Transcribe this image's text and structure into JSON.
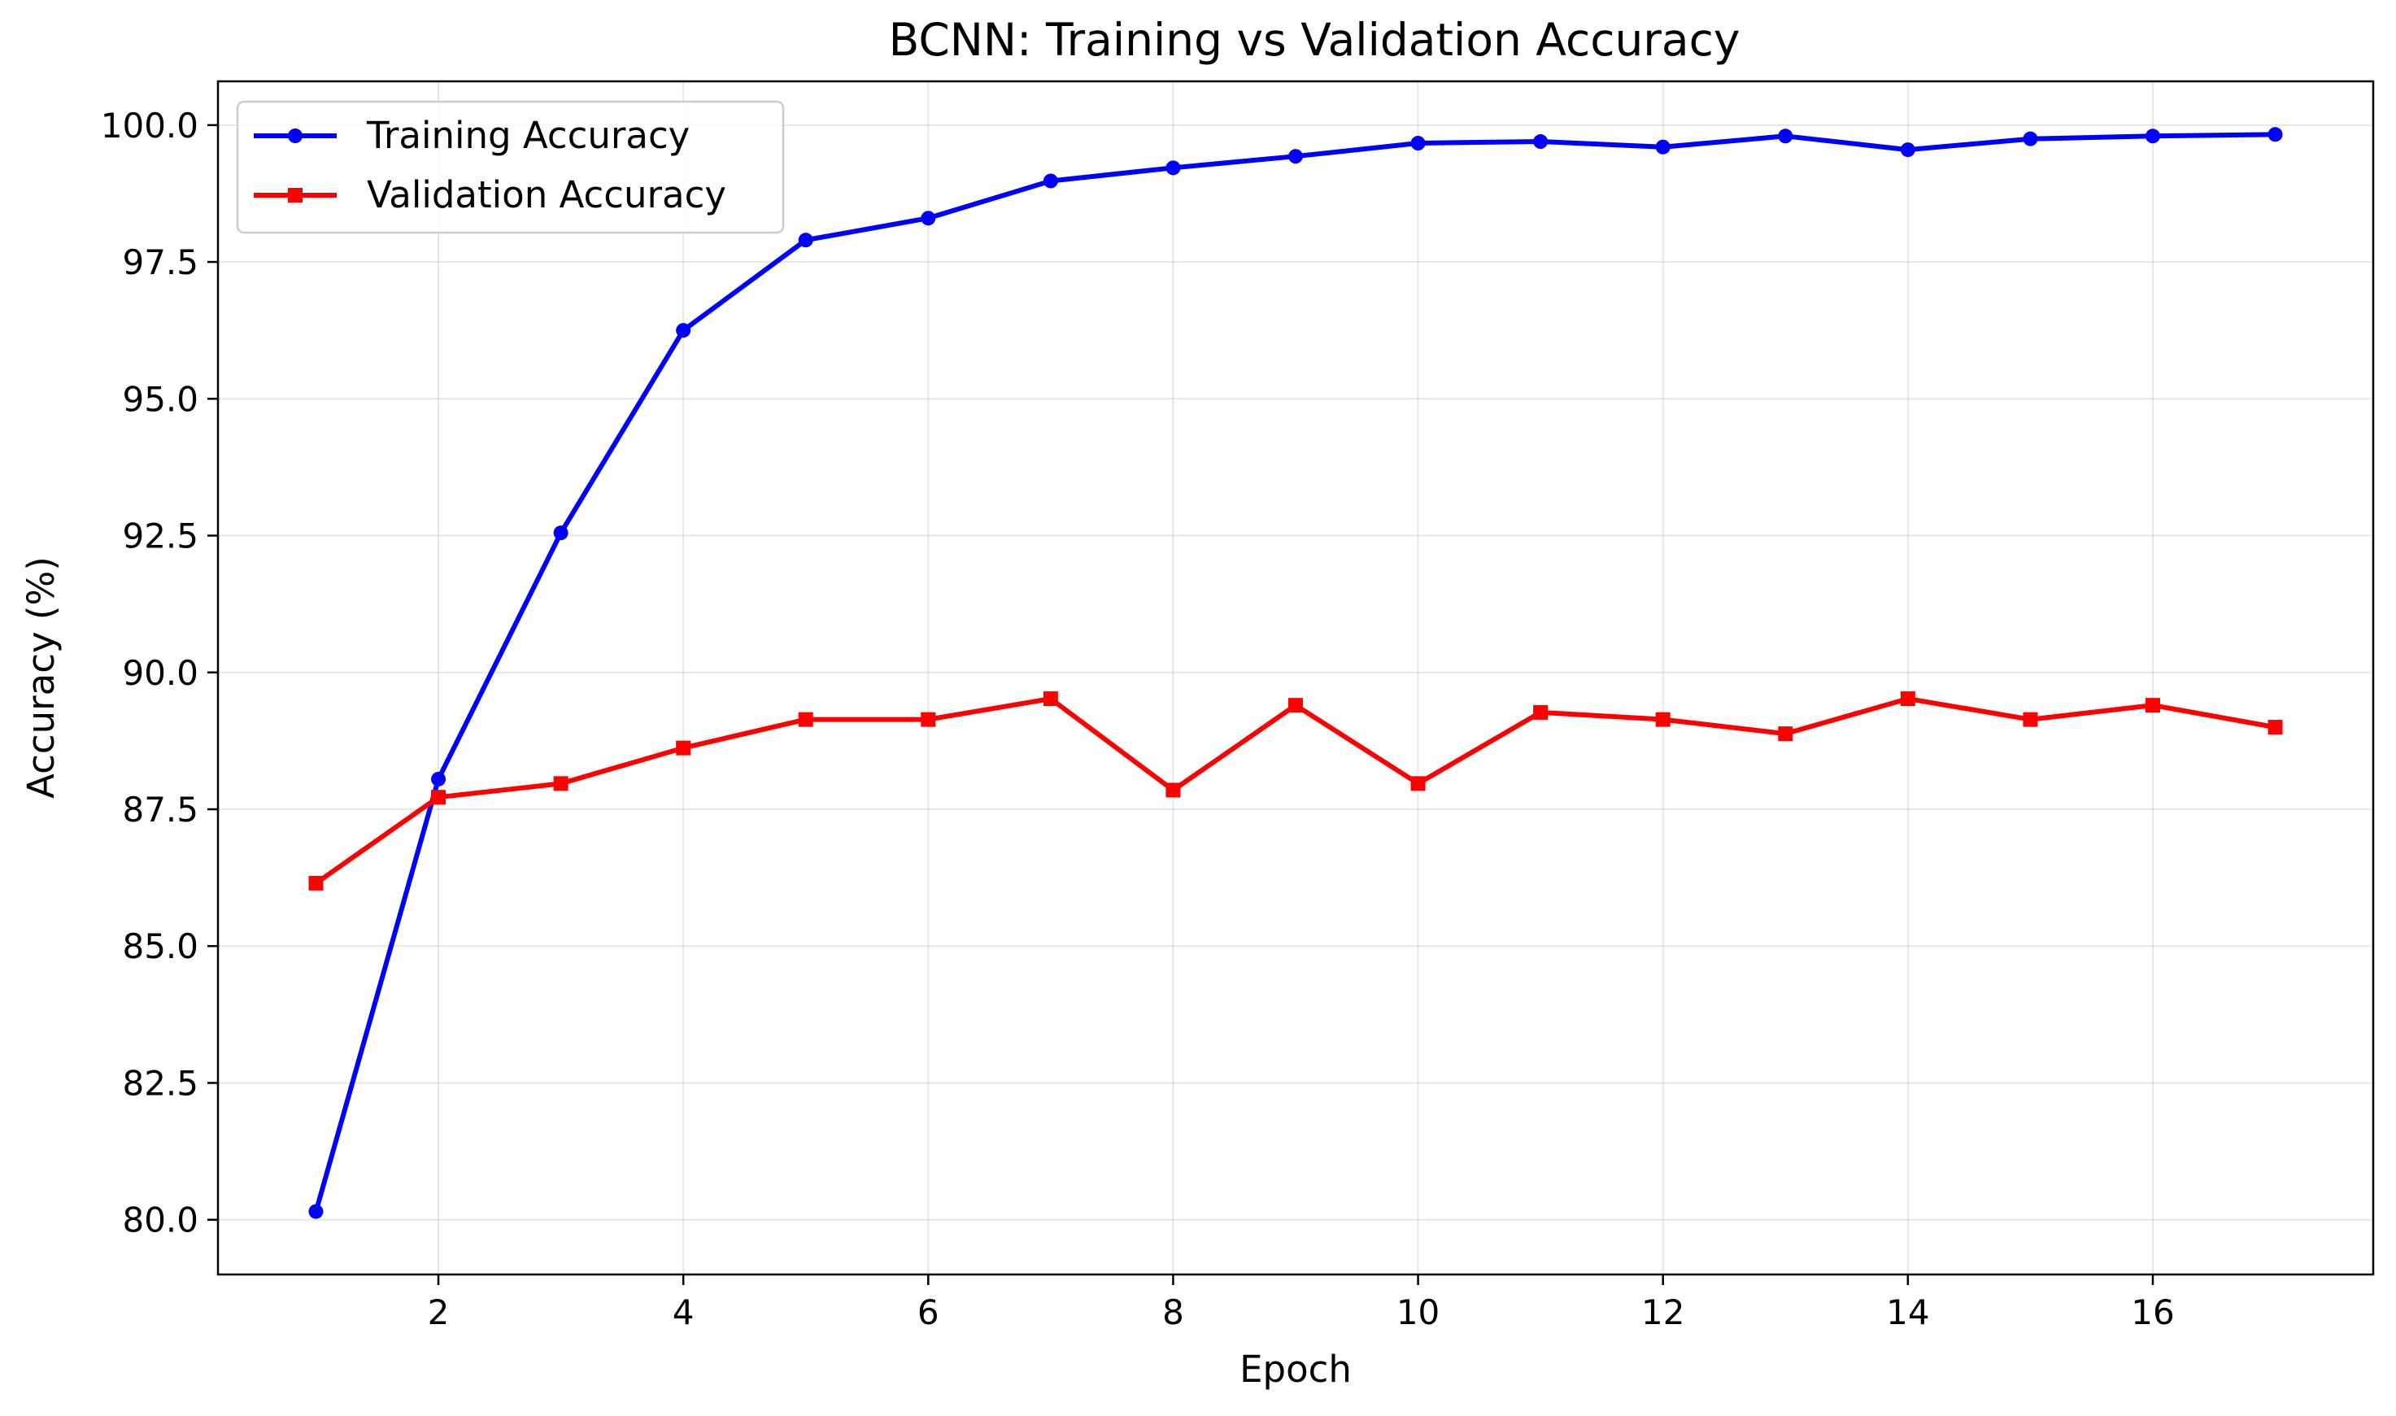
{
  "chart_data": {
    "type": "line",
    "title": "BCNN: Training vs Validation Accuracy",
    "xlabel": "Epoch",
    "ylabel": "Accuracy (%)",
    "x": [
      1,
      2,
      3,
      4,
      5,
      6,
      7,
      8,
      9,
      10,
      11,
      12,
      13,
      14,
      15,
      16,
      17
    ],
    "xlim": [
      0.2,
      17.8
    ],
    "ylim": [
      79.0,
      100.8
    ],
    "xticks": [
      2,
      4,
      6,
      8,
      10,
      12,
      14,
      16
    ],
    "xtick_labels": [
      "2",
      "4",
      "6",
      "8",
      "10",
      "12",
      "14",
      "16"
    ],
    "yticks": [
      80.0,
      82.5,
      85.0,
      87.5,
      90.0,
      92.5,
      95.0,
      97.5,
      100.0
    ],
    "ytick_labels": [
      "80.0",
      "82.5",
      "85.0",
      "87.5",
      "90.0",
      "92.5",
      "95.0",
      "97.5",
      "100.0"
    ],
    "grid": true,
    "legend_position": "top-left",
    "series": [
      {
        "name": "Training Accuracy",
        "color": "#0000ff",
        "marker": "circle",
        "values": [
          80.15,
          88.05,
          92.55,
          96.25,
          97.9,
          98.3,
          98.98,
          99.22,
          99.43,
          99.67,
          99.7,
          99.6,
          99.8,
          99.55,
          99.75,
          99.8,
          99.83
        ]
      },
      {
        "name": "Validation Accuracy",
        "color": "#ff0000",
        "marker": "square",
        "values": [
          86.15,
          87.72,
          87.97,
          88.62,
          89.14,
          89.14,
          89.52,
          87.85,
          89.4,
          87.97,
          89.27,
          89.14,
          88.88,
          89.52,
          89.14,
          89.4,
          89.0
        ]
      }
    ]
  }
}
